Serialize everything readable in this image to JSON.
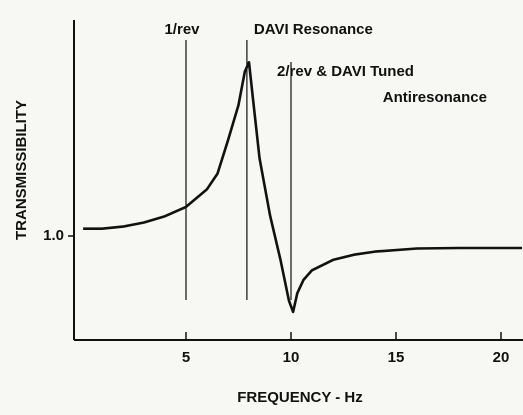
{
  "chart_data": {
    "type": "line",
    "xlabel": "FREQUENCY - Hz",
    "ylabel": "TRANSMISSIBILITY",
    "x": [
      0.1,
      1,
      2,
      3,
      4,
      5,
      6,
      6.5,
      7,
      7.5,
      7.8,
      8,
      8.2,
      8.5,
      9,
      9.5,
      9.9,
      10.1,
      10.3,
      10.6,
      11,
      12,
      13,
      14,
      16,
      18,
      21
    ],
    "values": [
      1.07,
      1.07,
      1.09,
      1.13,
      1.19,
      1.28,
      1.45,
      1.6,
      1.92,
      2.26,
      2.58,
      2.67,
      2.3,
      1.75,
      1.2,
      0.77,
      0.38,
      0.27,
      0.45,
      0.58,
      0.67,
      0.77,
      0.82,
      0.85,
      0.88,
      0.885,
      0.885
    ],
    "color": "#111111",
    "xlim": [
      0,
      21
    ],
    "ylim": [
      0,
      3.1
    ],
    "xticks": [
      5,
      10,
      15,
      20
    ],
    "yticks": [
      {
        "value": 1,
        "label": "1.0"
      }
    ],
    "reference_lines": [
      {
        "x": 5,
        "label": [
          "1/rev"
        ]
      },
      {
        "x": 7.9,
        "label": [
          "DAVI Resonance"
        ]
      },
      {
        "x": 10,
        "label": [
          "2/rev & DAVI Tuned",
          "Antiresonance"
        ]
      }
    ]
  }
}
